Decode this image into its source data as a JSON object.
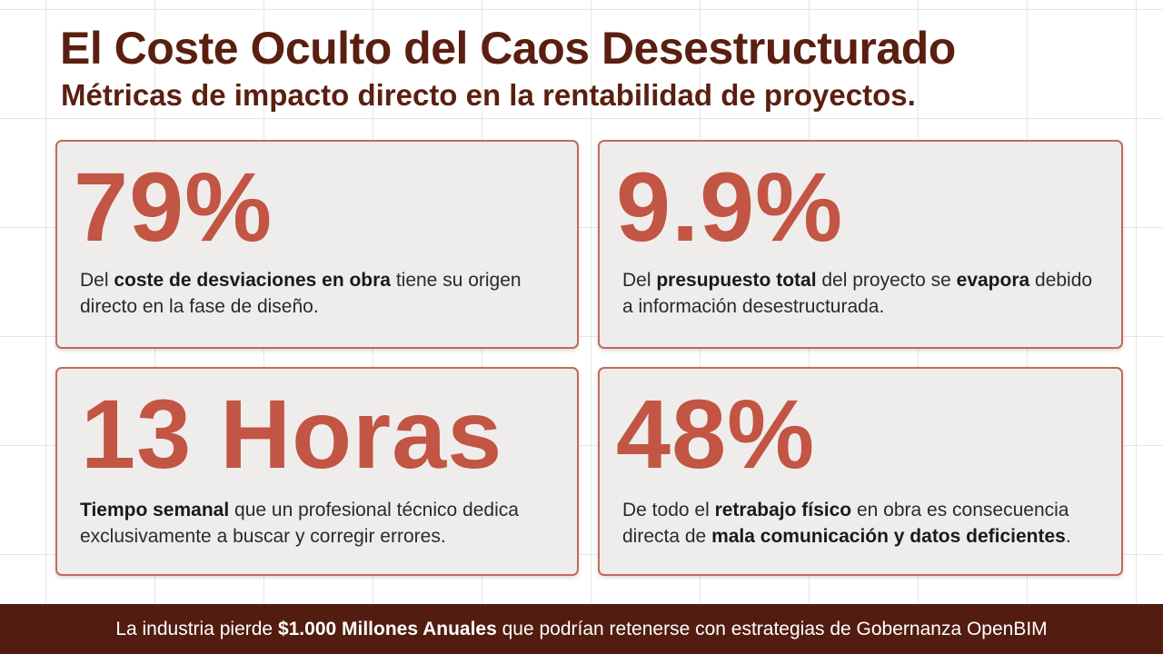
{
  "header": {
    "title": "El Coste Oculto del Caos Desestructurado",
    "subtitle": "Métricas de impacto directo en la rentabilidad de proyectos."
  },
  "cards": [
    {
      "metric": "79%",
      "desc": {
        "t1": "Del ",
        "b1": "coste de desviaciones en obra",
        "t2": " tiene su origen directo en la fase de diseño.",
        "b2": "",
        "t3": ""
      }
    },
    {
      "metric": "9.9%",
      "desc": {
        "t1": "Del ",
        "b1": "presupuesto total",
        "t2": " del proyecto se ",
        "b2": "evapora",
        "t3": " debido a información desestructurada."
      }
    },
    {
      "metric": "13 Horas",
      "desc": {
        "t1": "",
        "b1": "Tiempo semanal",
        "t2": " que un profesional técnico dedica exclusivamente a buscar y corregir errores.",
        "b2": "",
        "t3": ""
      }
    },
    {
      "metric": "48%",
      "desc": {
        "t1": "De todo el ",
        "b1": "retrabajo físico",
        "t2": " en obra es consecuencia directa de ",
        "b2": "mala comunicación y datos deficientes",
        "t3": "."
      }
    }
  ],
  "footer": {
    "t1": "La industria pierde ",
    "b1": "$1.000 Millones Anuales",
    "t2": " que podrían retenerse con estrategias de Gobernanza OpenBIM"
  },
  "colors": {
    "title": "#5a1f10",
    "metric": "#c25543",
    "card_border": "#c46a5a",
    "card_bg": "#efedec",
    "footer_bg": "#521c10"
  }
}
